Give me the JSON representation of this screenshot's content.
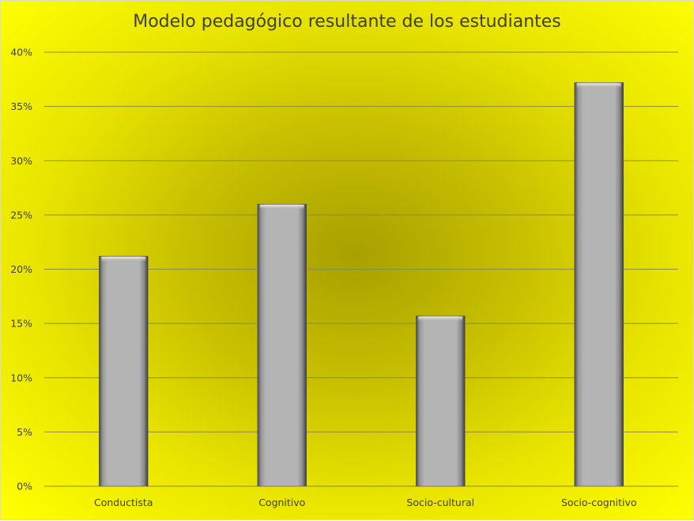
{
  "chart_data": {
    "type": "bar",
    "title": "Modelo pedagógico resultante de los estudiantes",
    "categories": [
      "Conductista",
      "Cognitivo",
      "Socio-cultural",
      "Socio-cognitivo"
    ],
    "values": [
      21.2,
      26.0,
      15.7,
      37.2
    ],
    "ylim": [
      0,
      40
    ],
    "yticks": [
      "0%",
      "5%",
      "10%",
      "15%",
      "20%",
      "25%",
      "30%",
      "35%",
      "40%"
    ],
    "ytick_values": [
      0,
      5,
      10,
      15,
      20,
      25,
      30,
      35,
      40
    ],
    "grid": true,
    "colors": {
      "bar_fill": "#b0b0b0",
      "gridline": "#8c8c40",
      "background_outer": "#ffff00",
      "background_center": "#a8a000",
      "text": "#404040"
    }
  }
}
